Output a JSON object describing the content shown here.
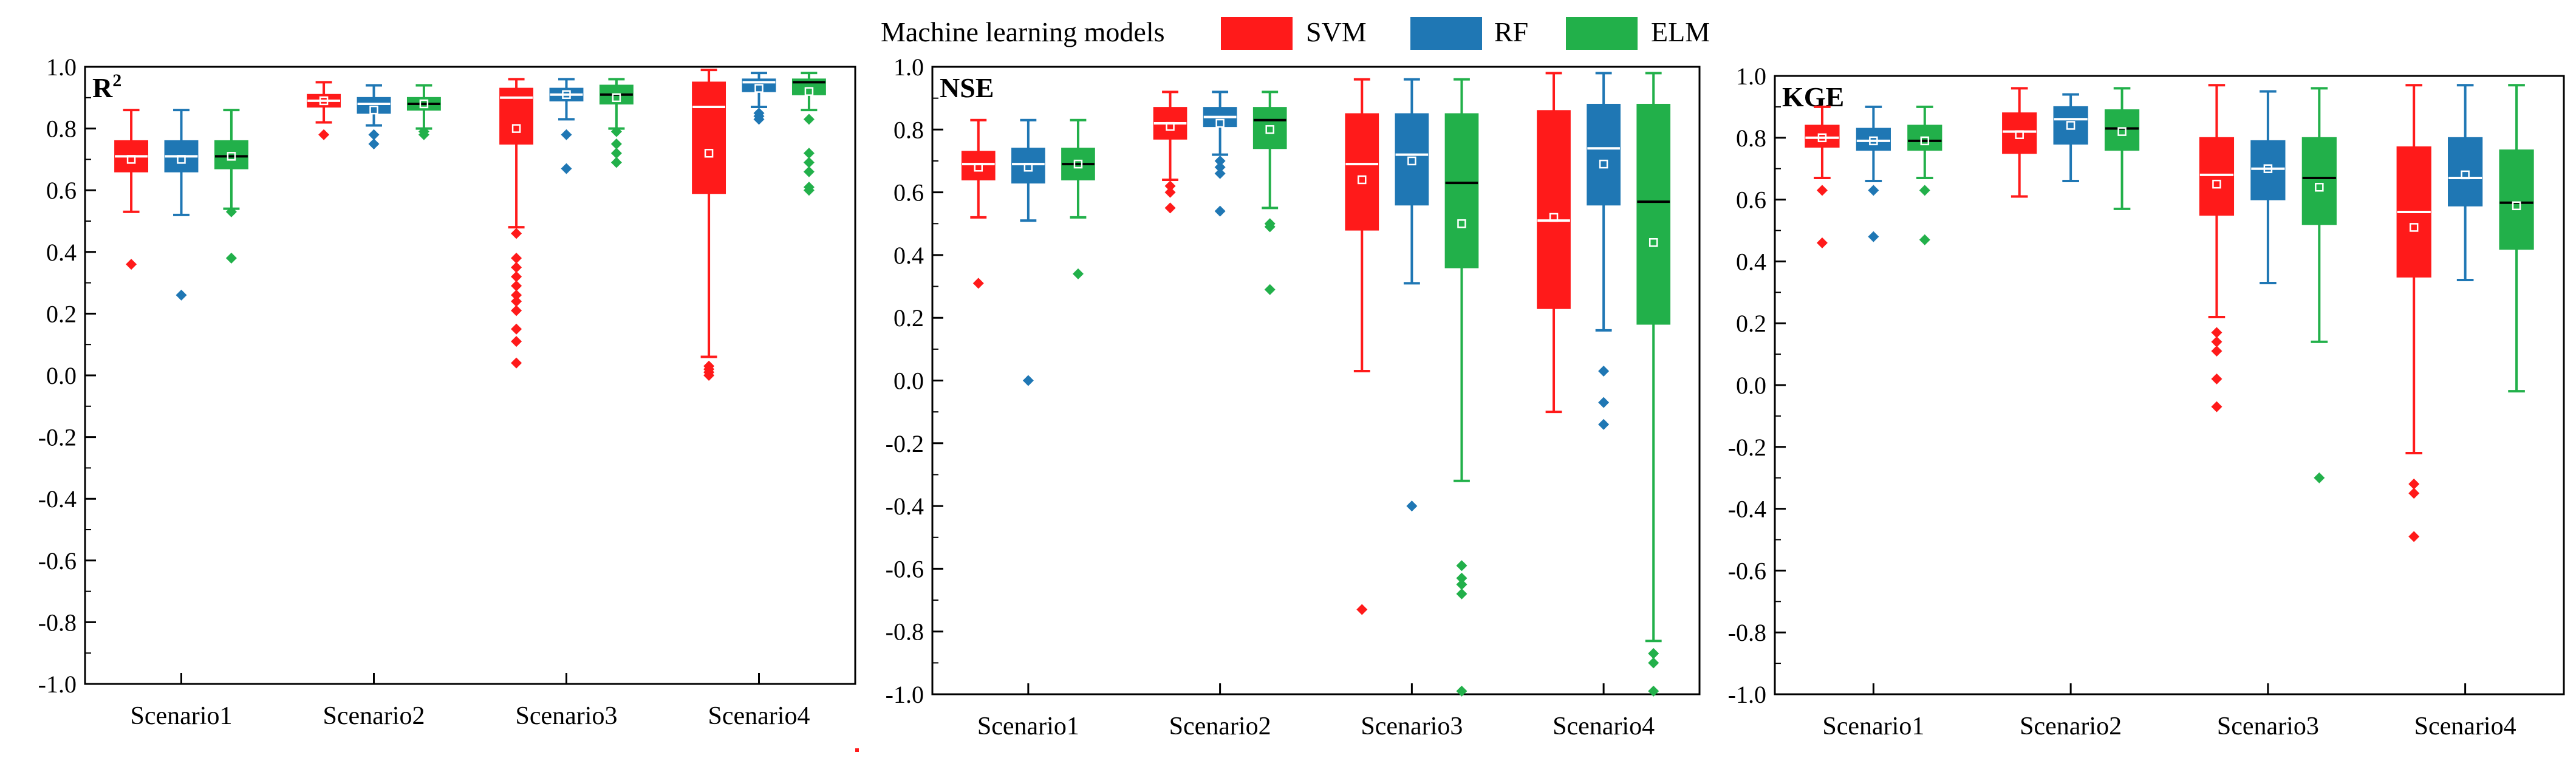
{
  "legend": {
    "title": "Machine learning models",
    "models": [
      {
        "name": "SVM",
        "color": "#ff1a1a"
      },
      {
        "name": "RF",
        "color": "#1f77b4"
      },
      {
        "name": "ELM",
        "color": "#22b04a"
      }
    ]
  },
  "chart_data": [
    {
      "type": "box",
      "title": "R²",
      "title_base": "R",
      "title_sup": "2",
      "categories": [
        "Scenario1",
        "Scenario2",
        "Scenario3",
        "Scenario4"
      ],
      "ylim": [
        -1.0,
        1.0
      ],
      "yticks": [
        "1.0",
        "0.8",
        "0.6",
        "0.4",
        "0.2",
        "0.0",
        "-0.2",
        "-0.4",
        "-0.6",
        "-0.8",
        "-1.0"
      ],
      "series": [
        {
          "name": "SVM",
          "boxes": [
            {
              "min": 0.53,
              "q1": 0.66,
              "median": 0.71,
              "q3": 0.76,
              "max": 0.86,
              "mean": 0.7,
              "outliers": [
                0.36
              ]
            },
            {
              "min": 0.82,
              "q1": 0.87,
              "median": 0.89,
              "q3": 0.91,
              "max": 0.95,
              "mean": 0.89,
              "outliers": [
                0.78
              ]
            },
            {
              "min": 0.48,
              "q1": 0.75,
              "median": 0.9,
              "q3": 0.93,
              "max": 0.96,
              "mean": 0.8,
              "outliers": [
                0.46,
                0.38,
                0.35,
                0.32,
                0.29,
                0.26,
                0.24,
                0.21,
                0.15,
                0.11,
                0.04
              ]
            },
            {
              "min": 0.06,
              "q1": 0.59,
              "median": 0.87,
              "q3": 0.95,
              "max": 0.99,
              "mean": 0.72,
              "outliers": [
                0.03,
                0.02,
                0.01,
                0.0
              ]
            }
          ]
        },
        {
          "name": "RF",
          "boxes": [
            {
              "min": 0.52,
              "q1": 0.66,
              "median": 0.71,
              "q3": 0.76,
              "max": 0.86,
              "mean": 0.7,
              "outliers": [
                0.26
              ]
            },
            {
              "min": 0.81,
              "q1": 0.85,
              "median": 0.88,
              "q3": 0.9,
              "max": 0.94,
              "mean": 0.86,
              "outliers": [
                0.78,
                0.75
              ]
            },
            {
              "min": 0.83,
              "q1": 0.89,
              "median": 0.91,
              "q3": 0.93,
              "max": 0.96,
              "mean": 0.91,
              "outliers": [
                0.78,
                0.67
              ]
            },
            {
              "min": 0.87,
              "q1": 0.92,
              "median": 0.95,
              "q3": 0.96,
              "max": 0.98,
              "mean": 0.93,
              "outliers": [
                0.85,
                0.84,
                0.83
              ]
            }
          ]
        },
        {
          "name": "ELM",
          "boxes": [
            {
              "min": 0.54,
              "q1": 0.67,
              "median": 0.71,
              "q3": 0.76,
              "max": 0.86,
              "mean": 0.71,
              "outliers": [
                0.53,
                0.38
              ]
            },
            {
              "min": 0.8,
              "q1": 0.86,
              "median": 0.88,
              "q3": 0.9,
              "max": 0.94,
              "mean": 0.88,
              "outliers": [
                0.79,
                0.78
              ]
            },
            {
              "min": 0.8,
              "q1": 0.88,
              "median": 0.91,
              "q3": 0.94,
              "max": 0.96,
              "mean": 0.9,
              "outliers": [
                0.79,
                0.75,
                0.72,
                0.69
              ]
            },
            {
              "min": 0.86,
              "q1": 0.91,
              "median": 0.95,
              "q3": 0.96,
              "max": 0.98,
              "mean": 0.92,
              "outliers": [
                0.83,
                0.72,
                0.69,
                0.66,
                0.61,
                0.6
              ]
            }
          ]
        }
      ]
    },
    {
      "type": "box",
      "title": "NSE",
      "title_base": "NSE",
      "title_sup": "",
      "categories": [
        "Scenario1",
        "Scenario2",
        "Scenario3",
        "Scenario4"
      ],
      "ylim": [
        -1.0,
        1.0
      ],
      "yticks": [
        "1.0",
        "0.8",
        "0.6",
        "0.4",
        "0.2",
        "0.0",
        "-0.2",
        "-0.4",
        "-0.6",
        "-0.8",
        "-1.0"
      ],
      "series": [
        {
          "name": "SVM",
          "boxes": [
            {
              "min": 0.52,
              "q1": 0.64,
              "median": 0.69,
              "q3": 0.73,
              "max": 0.83,
              "mean": 0.68,
              "outliers": [
                0.31
              ]
            },
            {
              "min": 0.64,
              "q1": 0.77,
              "median": 0.82,
              "q3": 0.87,
              "max": 0.92,
              "mean": 0.81,
              "outliers": [
                0.62,
                0.6,
                0.55
              ]
            },
            {
              "min": 0.03,
              "q1": 0.48,
              "median": 0.69,
              "q3": 0.85,
              "max": 0.96,
              "mean": 0.64,
              "outliers": [
                -0.73
              ]
            },
            {
              "min": -0.1,
              "q1": 0.23,
              "median": 0.51,
              "q3": 0.86,
              "max": 0.98,
              "mean": 0.52,
              "outliers": []
            }
          ]
        },
        {
          "name": "RF",
          "boxes": [
            {
              "min": 0.51,
              "q1": 0.63,
              "median": 0.69,
              "q3": 0.74,
              "max": 0.83,
              "mean": 0.68,
              "outliers": [
                0.0
              ]
            },
            {
              "min": 0.72,
              "q1": 0.81,
              "median": 0.84,
              "q3": 0.87,
              "max": 0.92,
              "mean": 0.82,
              "outliers": [
                0.7,
                0.68,
                0.66,
                0.54
              ]
            },
            {
              "min": 0.31,
              "q1": 0.56,
              "median": 0.72,
              "q3": 0.85,
              "max": 0.96,
              "mean": 0.7,
              "outliers": [
                -0.4
              ]
            },
            {
              "min": 0.16,
              "q1": 0.56,
              "median": 0.74,
              "q3": 0.88,
              "max": 0.98,
              "mean": 0.69,
              "outliers": [
                0.03,
                -0.07,
                -0.14
              ]
            }
          ]
        },
        {
          "name": "ELM",
          "boxes": [
            {
              "min": 0.52,
              "q1": 0.64,
              "median": 0.69,
              "q3": 0.74,
              "max": 0.83,
              "mean": 0.69,
              "outliers": [
                0.34
              ]
            },
            {
              "min": 0.55,
              "q1": 0.74,
              "median": 0.83,
              "q3": 0.87,
              "max": 0.92,
              "mean": 0.8,
              "outliers": [
                0.5,
                0.49,
                0.29
              ]
            },
            {
              "min": -0.32,
              "q1": 0.36,
              "median": 0.63,
              "q3": 0.85,
              "max": 0.96,
              "mean": 0.5,
              "outliers": [
                -0.59,
                -0.63,
                -0.65,
                -0.68,
                -0.99
              ]
            },
            {
              "min": -0.83,
              "q1": 0.18,
              "median": 0.57,
              "q3": 0.88,
              "max": 0.98,
              "mean": 0.44,
              "outliers": [
                -0.87,
                -0.9,
                -0.99
              ]
            }
          ]
        }
      ]
    },
    {
      "type": "box",
      "title": "KGE",
      "title_base": "KGE",
      "title_sup": "",
      "categories": [
        "Scenario1",
        "Scenario2",
        "Scenario3",
        "Scenario4"
      ],
      "ylim": [
        -1.0,
        1.0
      ],
      "yticks": [
        "1.0",
        "0.8",
        "0.6",
        "0.4",
        "0.2",
        "0.0",
        "-0.2",
        "-0.4",
        "-0.6",
        "-0.8",
        "-1.0"
      ],
      "series": [
        {
          "name": "SVM",
          "boxes": [
            {
              "min": 0.67,
              "q1": 0.77,
              "median": 0.8,
              "q3": 0.84,
              "max": 0.9,
              "mean": 0.8,
              "outliers": [
                0.63,
                0.46
              ]
            },
            {
              "min": 0.61,
              "q1": 0.75,
              "median": 0.82,
              "q3": 0.88,
              "max": 0.96,
              "mean": 0.81,
              "outliers": []
            },
            {
              "min": 0.22,
              "q1": 0.55,
              "median": 0.68,
              "q3": 0.8,
              "max": 0.97,
              "mean": 0.65,
              "outliers": [
                0.17,
                0.14,
                0.11,
                0.02,
                -0.07
              ]
            },
            {
              "min": -0.22,
              "q1": 0.35,
              "median": 0.56,
              "q3": 0.77,
              "max": 0.97,
              "mean": 0.51,
              "outliers": [
                -0.32,
                -0.35,
                -0.49
              ]
            }
          ]
        },
        {
          "name": "RF",
          "boxes": [
            {
              "min": 0.66,
              "q1": 0.76,
              "median": 0.79,
              "q3": 0.83,
              "max": 0.9,
              "mean": 0.79,
              "outliers": [
                0.63,
                0.48
              ]
            },
            {
              "min": 0.66,
              "q1": 0.78,
              "median": 0.86,
              "q3": 0.9,
              "max": 0.94,
              "mean": 0.84,
              "outliers": []
            },
            {
              "min": 0.33,
              "q1": 0.6,
              "median": 0.7,
              "q3": 0.79,
              "max": 0.95,
              "mean": 0.7,
              "outliers": []
            },
            {
              "min": 0.34,
              "q1": 0.58,
              "median": 0.67,
              "q3": 0.8,
              "max": 0.97,
              "mean": 0.68,
              "outliers": []
            }
          ]
        },
        {
          "name": "ELM",
          "boxes": [
            {
              "min": 0.67,
              "q1": 0.76,
              "median": 0.79,
              "q3": 0.84,
              "max": 0.9,
              "mean": 0.79,
              "outliers": [
                0.63,
                0.47
              ]
            },
            {
              "min": 0.57,
              "q1": 0.76,
              "median": 0.83,
              "q3": 0.89,
              "max": 0.96,
              "mean": 0.82,
              "outliers": []
            },
            {
              "min": 0.14,
              "q1": 0.52,
              "median": 0.67,
              "q3": 0.8,
              "max": 0.96,
              "mean": 0.64,
              "outliers": [
                -0.3
              ]
            },
            {
              "min": -0.02,
              "q1": 0.44,
              "median": 0.59,
              "q3": 0.76,
              "max": 0.97,
              "mean": 0.58,
              "outliers": []
            }
          ]
        }
      ]
    }
  ]
}
